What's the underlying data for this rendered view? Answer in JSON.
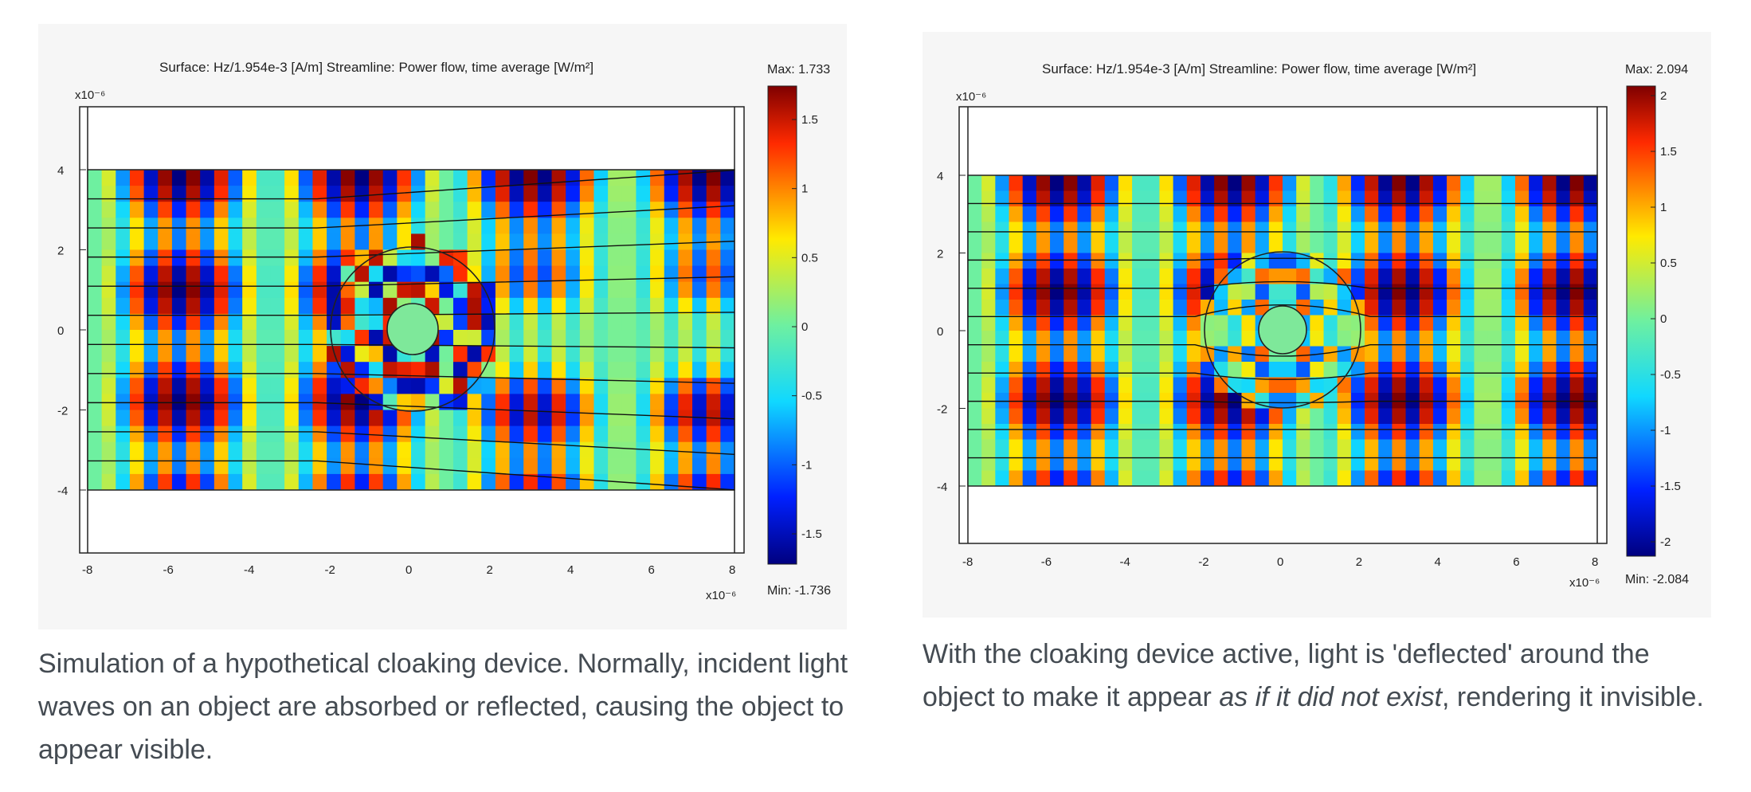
{
  "figures": [
    {
      "id": "left",
      "surface_title": "Surface: Hz/1.954e-3 [A/m]   Streamline: Power flow, time average [W/m²]",
      "max_label": "Max: 1.733",
      "min_label": "Min: -1.736",
      "y_exponent": "x10⁻⁶",
      "x_exponent": "x10⁻⁶",
      "y_ticks": [
        "4",
        "2",
        "0",
        "-2",
        "-4"
      ],
      "x_ticks": [
        "-8",
        "-6",
        "-4",
        "-2",
        "0",
        "2",
        "4",
        "6",
        "8"
      ],
      "colorbar_ticks": [
        "1.5",
        "1",
        "0.5",
        "0",
        "-0.5",
        "-1",
        "-1.5"
      ],
      "caption": "Simulation of a hypothetical cloaking device. Normally, incident light waves on an object are absorbed or reflected, causing the object to appear visible."
    },
    {
      "id": "right",
      "surface_title": "Surface: Hz/1.954e-3 [A/m]   Streamline: Power flow, time average [W/m²]",
      "max_label": "Max: 2.094",
      "min_label": "Min: -2.084",
      "y_exponent": "x10⁻⁶",
      "x_exponent": "x10⁻⁶",
      "y_ticks": [
        "4",
        "2",
        "0",
        "-2",
        "-4"
      ],
      "x_ticks": [
        "-8",
        "-6",
        "-4",
        "-2",
        "0",
        "2",
        "4",
        "6",
        "8"
      ],
      "colorbar_ticks": [
        "2",
        "1.5",
        "1",
        "0.5",
        "0",
        "-0.5",
        "-1",
        "-1.5",
        "-2"
      ],
      "caption_before": "With the cloaking device active, light is 'deflected' around the object to make it appear ",
      "caption_em": "as if it did not exist",
      "caption_after": ", rendering it invisible."
    }
  ],
  "colors": {
    "dark_red": "#7f0000",
    "red": "#ff2a00",
    "yellow": "#ffea00",
    "cyan": "#4bf0d0",
    "blue": "#0020ff",
    "dark_blue": "#00007f",
    "background_field": "#7ee89a",
    "caption_text": "#444b52"
  }
}
